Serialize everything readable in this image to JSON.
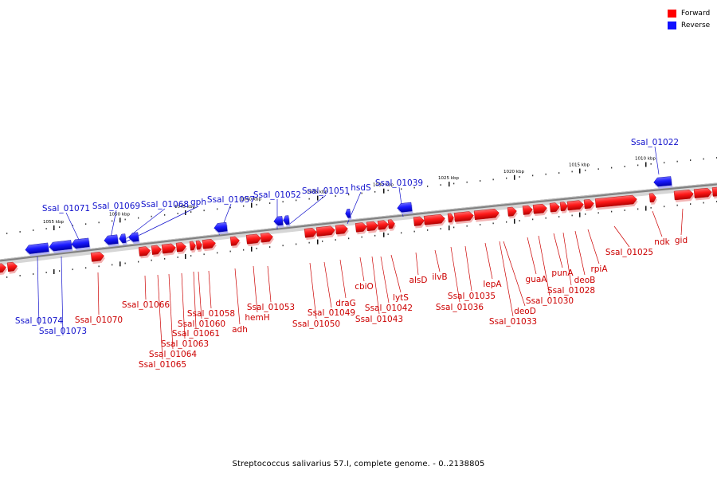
{
  "caption": "Streptococcus salivarius 57.I, complete genome. - 0..2138805",
  "legend": [
    {
      "label": "Forward",
      "color": "#ff0000"
    },
    {
      "label": "Reverse",
      "color": "#1010ff"
    }
  ],
  "colors": {
    "forward": "#ff1a1a",
    "reverse": "#1a1aff",
    "backbone": "#808080"
  },
  "ticks": [
    "1055 kbp",
    "1050 kbp",
    "1045 kbp",
    "1040 kbp",
    "1035 kbp",
    "1030 kbp",
    "1025 kbp",
    "1020 kbp",
    "1015 kbp",
    "1010 kbp"
  ],
  "forward_labels": [
    "Ssal_01070",
    "Ssal_01066",
    "Ssal_01065",
    "Ssal_01064",
    "Ssal_01063",
    "Ssal_01061",
    "Ssal_01060",
    "Ssal_01058",
    "adh",
    "hemH",
    "Ssal_01053",
    "Ssal_01050",
    "Ssal_01049",
    "draG",
    "cbiO",
    "Ssal_01043",
    "Ssal_01042",
    "lytS",
    "alsD",
    "ilvB",
    "Ssal_01036",
    "Ssal_01035",
    "lepA",
    "deoD",
    "Ssal_01033",
    "guaA",
    "Ssal_01030",
    "punA",
    "Ssal_01028",
    "deoB",
    "rpiA",
    "Ssal_01025",
    "ndk",
    "gid"
  ],
  "reverse_labels": [
    "Ssal_01074",
    "Ssal_01073",
    "Ssal_01071",
    "Ssal_01069",
    "Ssal_01068",
    "gph",
    "Ssal_01057",
    "Ssal_01052",
    "Ssal_01051",
    "hsdS",
    "Ssal_01039",
    "Ssal_01022"
  ]
}
